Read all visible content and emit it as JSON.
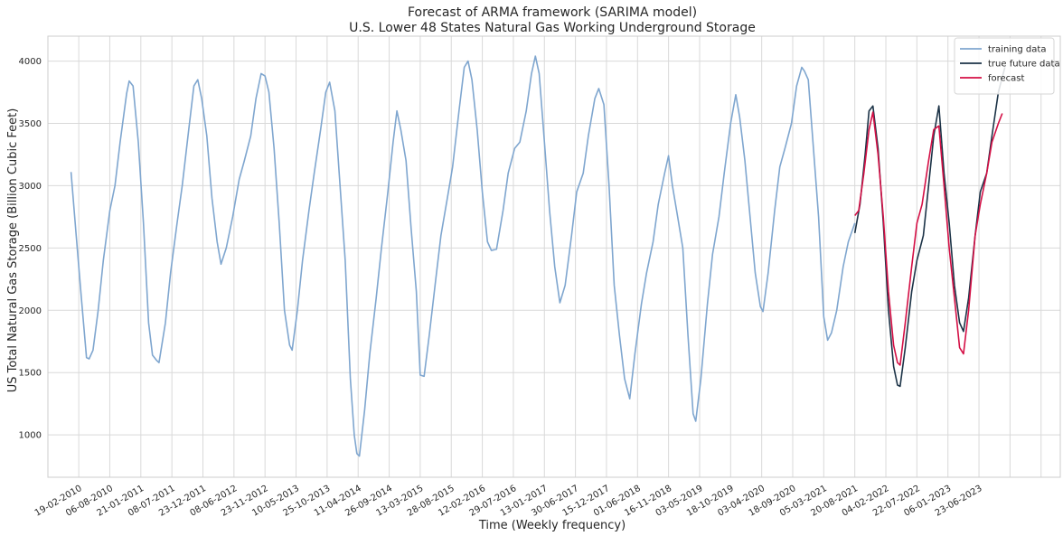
{
  "chart_data": {
    "type": "line",
    "title": "Forecast of ARMA framework (SARIMA model)",
    "subtitle": "U.S. Lower 48 States Natural Gas Working Underground Storage",
    "xlabel": "Time (Weekly frequency)",
    "ylabel": "US Total Natural Gas Storage (Billion Cubic Feet)",
    "ylim": [
      660,
      4200
    ],
    "xlim": [
      "2009-09-05",
      "2024-09-05"
    ],
    "grid": true,
    "legend": "top-right",
    "x_tick_labels": [
      "19-02-2010",
      "06-08-2010",
      "21-01-2011",
      "08-07-2011",
      "23-12-2011",
      "08-06-2012",
      "23-11-2012",
      "10-05-2013",
      "25-10-2013",
      "11-04-2014",
      "26-09-2014",
      "13-03-2015",
      "28-08-2015",
      "12-02-2016",
      "29-07-2016",
      "13-01-2017",
      "30-06-2017",
      "15-12-2017",
      "01-06-2018",
      "16-11-2018",
      "03-05-2019",
      "18-10-2019",
      "03-04-2020",
      "18-09-2020",
      "05-03-2021",
      "20-08-2021",
      "04-02-2022",
      "22-07-2022",
      "06-01-2023",
      "23-06-2023"
    ],
    "y_ticks": [
      1000,
      1500,
      2000,
      2500,
      3000,
      3500,
      4000
    ],
    "series": [
      {
        "name": "training data",
        "color": "#7fa6cf",
        "points": [
          [
            "2010-01-08",
            3110
          ],
          [
            "2010-02-05",
            2600
          ],
          [
            "2010-03-05",
            2100
          ],
          [
            "2010-04-02",
            1620
          ],
          [
            "2010-04-16",
            1610
          ],
          [
            "2010-05-07",
            1680
          ],
          [
            "2010-06-04",
            2000
          ],
          [
            "2010-07-02",
            2400
          ],
          [
            "2010-08-06",
            2800
          ],
          [
            "2010-09-03",
            3000
          ],
          [
            "2010-10-01",
            3350
          ],
          [
            "2010-11-05",
            3740
          ],
          [
            "2010-11-19",
            3840
          ],
          [
            "2010-12-10",
            3800
          ],
          [
            "2011-01-07",
            3350
          ],
          [
            "2011-02-04",
            2700
          ],
          [
            "2011-03-04",
            1900
          ],
          [
            "2011-03-25",
            1640
          ],
          [
            "2011-04-15",
            1600
          ],
          [
            "2011-04-29",
            1580
          ],
          [
            "2011-06-03",
            1900
          ],
          [
            "2011-07-01",
            2300
          ],
          [
            "2011-08-05",
            2700
          ],
          [
            "2011-09-02",
            3000
          ],
          [
            "2011-10-07",
            3450
          ],
          [
            "2011-11-04",
            3800
          ],
          [
            "2011-11-25",
            3850
          ],
          [
            "2011-12-16",
            3700
          ],
          [
            "2012-01-13",
            3400
          ],
          [
            "2012-02-10",
            2900
          ],
          [
            "2012-03-09",
            2550
          ],
          [
            "2012-03-30",
            2370
          ],
          [
            "2012-04-27",
            2500
          ],
          [
            "2012-06-01",
            2750
          ],
          [
            "2012-07-06",
            3050
          ],
          [
            "2012-08-03",
            3200
          ],
          [
            "2012-09-07",
            3400
          ],
          [
            "2012-10-05",
            3700
          ],
          [
            "2012-11-02",
            3900
          ],
          [
            "2012-11-23",
            3880
          ],
          [
            "2012-12-14",
            3750
          ],
          [
            "2013-01-11",
            3300
          ],
          [
            "2013-02-08",
            2700
          ],
          [
            "2013-03-08",
            2000
          ],
          [
            "2013-04-05",
            1720
          ],
          [
            "2013-04-19",
            1680
          ],
          [
            "2013-05-17",
            2000
          ],
          [
            "2013-06-14",
            2400
          ],
          [
            "2013-07-19",
            2800
          ],
          [
            "2013-08-16",
            3100
          ],
          [
            "2013-09-20",
            3450
          ],
          [
            "2013-10-18",
            3750
          ],
          [
            "2013-11-08",
            3830
          ],
          [
            "2013-12-06",
            3600
          ],
          [
            "2014-01-03",
            3000
          ],
          [
            "2014-01-31",
            2400
          ],
          [
            "2014-02-28",
            1450
          ],
          [
            "2014-03-21",
            1000
          ],
          [
            "2014-04-04",
            850
          ],
          [
            "2014-04-18",
            830
          ],
          [
            "2014-05-16",
            1200
          ],
          [
            "2014-06-13",
            1650
          ],
          [
            "2014-07-18",
            2100
          ],
          [
            "2014-08-15",
            2500
          ],
          [
            "2014-09-19",
            2950
          ],
          [
            "2014-10-17",
            3350
          ],
          [
            "2014-11-07",
            3600
          ],
          [
            "2014-11-28",
            3450
          ],
          [
            "2014-12-26",
            3200
          ],
          [
            "2015-01-23",
            2650
          ],
          [
            "2015-02-20",
            2150
          ],
          [
            "2015-03-13",
            1480
          ],
          [
            "2015-04-03",
            1470
          ],
          [
            "2015-05-01",
            1800
          ],
          [
            "2015-06-05",
            2250
          ],
          [
            "2015-07-03",
            2600
          ],
          [
            "2015-08-07",
            2900
          ],
          [
            "2015-09-04",
            3150
          ],
          [
            "2015-10-09",
            3600
          ],
          [
            "2015-11-06",
            3950
          ],
          [
            "2015-11-27",
            4000
          ],
          [
            "2015-12-18",
            3850
          ],
          [
            "2016-01-15",
            3450
          ],
          [
            "2016-02-12",
            2950
          ],
          [
            "2016-03-11",
            2550
          ],
          [
            "2016-04-01",
            2480
          ],
          [
            "2016-04-29",
            2490
          ],
          [
            "2016-06-03",
            2800
          ],
          [
            "2016-07-01",
            3100
          ],
          [
            "2016-08-05",
            3300
          ],
          [
            "2016-09-02",
            3350
          ],
          [
            "2016-10-07",
            3600
          ],
          [
            "2016-11-04",
            3900
          ],
          [
            "2016-11-25",
            4040
          ],
          [
            "2016-12-16",
            3900
          ],
          [
            "2017-01-13",
            3350
          ],
          [
            "2017-02-10",
            2800
          ],
          [
            "2017-03-10",
            2350
          ],
          [
            "2017-04-07",
            2060
          ],
          [
            "2017-05-05",
            2200
          ],
          [
            "2017-06-09",
            2600
          ],
          [
            "2017-07-07",
            2950
          ],
          [
            "2017-08-11",
            3100
          ],
          [
            "2017-09-08",
            3400
          ],
          [
            "2017-10-13",
            3700
          ],
          [
            "2017-11-03",
            3780
          ],
          [
            "2017-12-01",
            3650
          ],
          [
            "2017-12-29",
            3000
          ],
          [
            "2018-01-26",
            2200
          ],
          [
            "2018-02-23",
            1800
          ],
          [
            "2018-03-23",
            1450
          ],
          [
            "2018-04-20",
            1290
          ],
          [
            "2018-05-18",
            1650
          ],
          [
            "2018-06-22",
            2050
          ],
          [
            "2018-07-20",
            2300
          ],
          [
            "2018-08-24",
            2550
          ],
          [
            "2018-09-21",
            2850
          ],
          [
            "2018-10-26",
            3100
          ],
          [
            "2018-11-16",
            3240
          ],
          [
            "2018-12-07",
            3000
          ],
          [
            "2019-01-04",
            2750
          ],
          [
            "2019-02-01",
            2500
          ],
          [
            "2019-03-01",
            1800
          ],
          [
            "2019-03-29",
            1170
          ],
          [
            "2019-04-12",
            1110
          ],
          [
            "2019-05-10",
            1450
          ],
          [
            "2019-06-14",
            2050
          ],
          [
            "2019-07-12",
            2450
          ],
          [
            "2019-08-16",
            2750
          ],
          [
            "2019-09-13",
            3100
          ],
          [
            "2019-10-18",
            3500
          ],
          [
            "2019-11-15",
            3730
          ],
          [
            "2019-12-06",
            3550
          ],
          [
            "2020-01-03",
            3200
          ],
          [
            "2020-01-31",
            2750
          ],
          [
            "2020-02-28",
            2300
          ],
          [
            "2020-03-27",
            2030
          ],
          [
            "2020-04-10",
            1990
          ],
          [
            "2020-05-08",
            2300
          ],
          [
            "2020-06-12",
            2800
          ],
          [
            "2020-07-10",
            3150
          ],
          [
            "2020-08-07",
            3300
          ],
          [
            "2020-09-11",
            3500
          ],
          [
            "2020-10-09",
            3800
          ],
          [
            "2020-11-06",
            3950
          ],
          [
            "2020-11-20",
            3920
          ],
          [
            "2020-12-11",
            3850
          ],
          [
            "2021-01-08",
            3300
          ],
          [
            "2021-02-05",
            2750
          ],
          [
            "2021-03-05",
            1950
          ],
          [
            "2021-03-26",
            1760
          ],
          [
            "2021-04-16",
            1820
          ],
          [
            "2021-05-14",
            2000
          ],
          [
            "2021-06-18",
            2350
          ],
          [
            "2021-07-16",
            2550
          ],
          [
            "2021-08-20",
            2700
          ]
        ]
      },
      {
        "name": "true future data",
        "color": "#1c3347",
        "points": [
          [
            "2021-08-20",
            2620
          ],
          [
            "2021-09-17",
            2850
          ],
          [
            "2021-10-15",
            3250
          ],
          [
            "2021-11-05",
            3600
          ],
          [
            "2021-11-26",
            3640
          ],
          [
            "2021-12-24",
            3300
          ],
          [
            "2022-01-21",
            2700
          ],
          [
            "2022-02-18",
            2000
          ],
          [
            "2022-03-18",
            1550
          ],
          [
            "2022-04-08",
            1400
          ],
          [
            "2022-04-22",
            1390
          ],
          [
            "2022-05-20",
            1700
          ],
          [
            "2022-06-24",
            2150
          ],
          [
            "2022-07-22",
            2400
          ],
          [
            "2022-08-26",
            2600
          ],
          [
            "2022-09-23",
            3000
          ],
          [
            "2022-10-21",
            3400
          ],
          [
            "2022-11-18",
            3640
          ],
          [
            "2022-12-16",
            3100
          ],
          [
            "2023-01-13",
            2700
          ],
          [
            "2023-02-10",
            2200
          ],
          [
            "2023-03-10",
            1900
          ],
          [
            "2023-03-31",
            1830
          ],
          [
            "2023-04-28",
            2100
          ],
          [
            "2023-06-02",
            2600
          ],
          [
            "2023-06-30",
            2950
          ],
          [
            "2023-08-04",
            3100
          ],
          [
            "2023-09-01",
            3400
          ],
          [
            "2023-10-06",
            3750
          ],
          [
            "2023-11-10",
            3950
          ]
        ]
      },
      {
        "name": "forecast",
        "color": "#d40f45",
        "points": [
          [
            "2021-08-20",
            2760
          ],
          [
            "2021-09-10",
            2800
          ],
          [
            "2021-10-08",
            3100
          ],
          [
            "2021-11-05",
            3450
          ],
          [
            "2021-11-26",
            3590
          ],
          [
            "2021-12-24",
            3250
          ],
          [
            "2022-01-21",
            2750
          ],
          [
            "2022-02-18",
            2150
          ],
          [
            "2022-03-18",
            1720
          ],
          [
            "2022-04-08",
            1580
          ],
          [
            "2022-04-22",
            1560
          ],
          [
            "2022-05-20",
            1900
          ],
          [
            "2022-06-24",
            2350
          ],
          [
            "2022-07-22",
            2700
          ],
          [
            "2022-08-19",
            2850
          ],
          [
            "2022-09-23",
            3200
          ],
          [
            "2022-10-21",
            3450
          ],
          [
            "2022-11-18",
            3480
          ],
          [
            "2022-12-16",
            3000
          ],
          [
            "2023-01-13",
            2500
          ],
          [
            "2023-02-10",
            2100
          ],
          [
            "2023-03-10",
            1700
          ],
          [
            "2023-03-31",
            1650
          ],
          [
            "2023-04-28",
            2000
          ],
          [
            "2023-06-02",
            2600
          ],
          [
            "2023-06-30",
            2850
          ],
          [
            "2023-08-04",
            3100
          ],
          [
            "2023-09-01",
            3350
          ],
          [
            "2023-10-06",
            3500
          ],
          [
            "2023-10-27",
            3580
          ]
        ]
      }
    ]
  }
}
